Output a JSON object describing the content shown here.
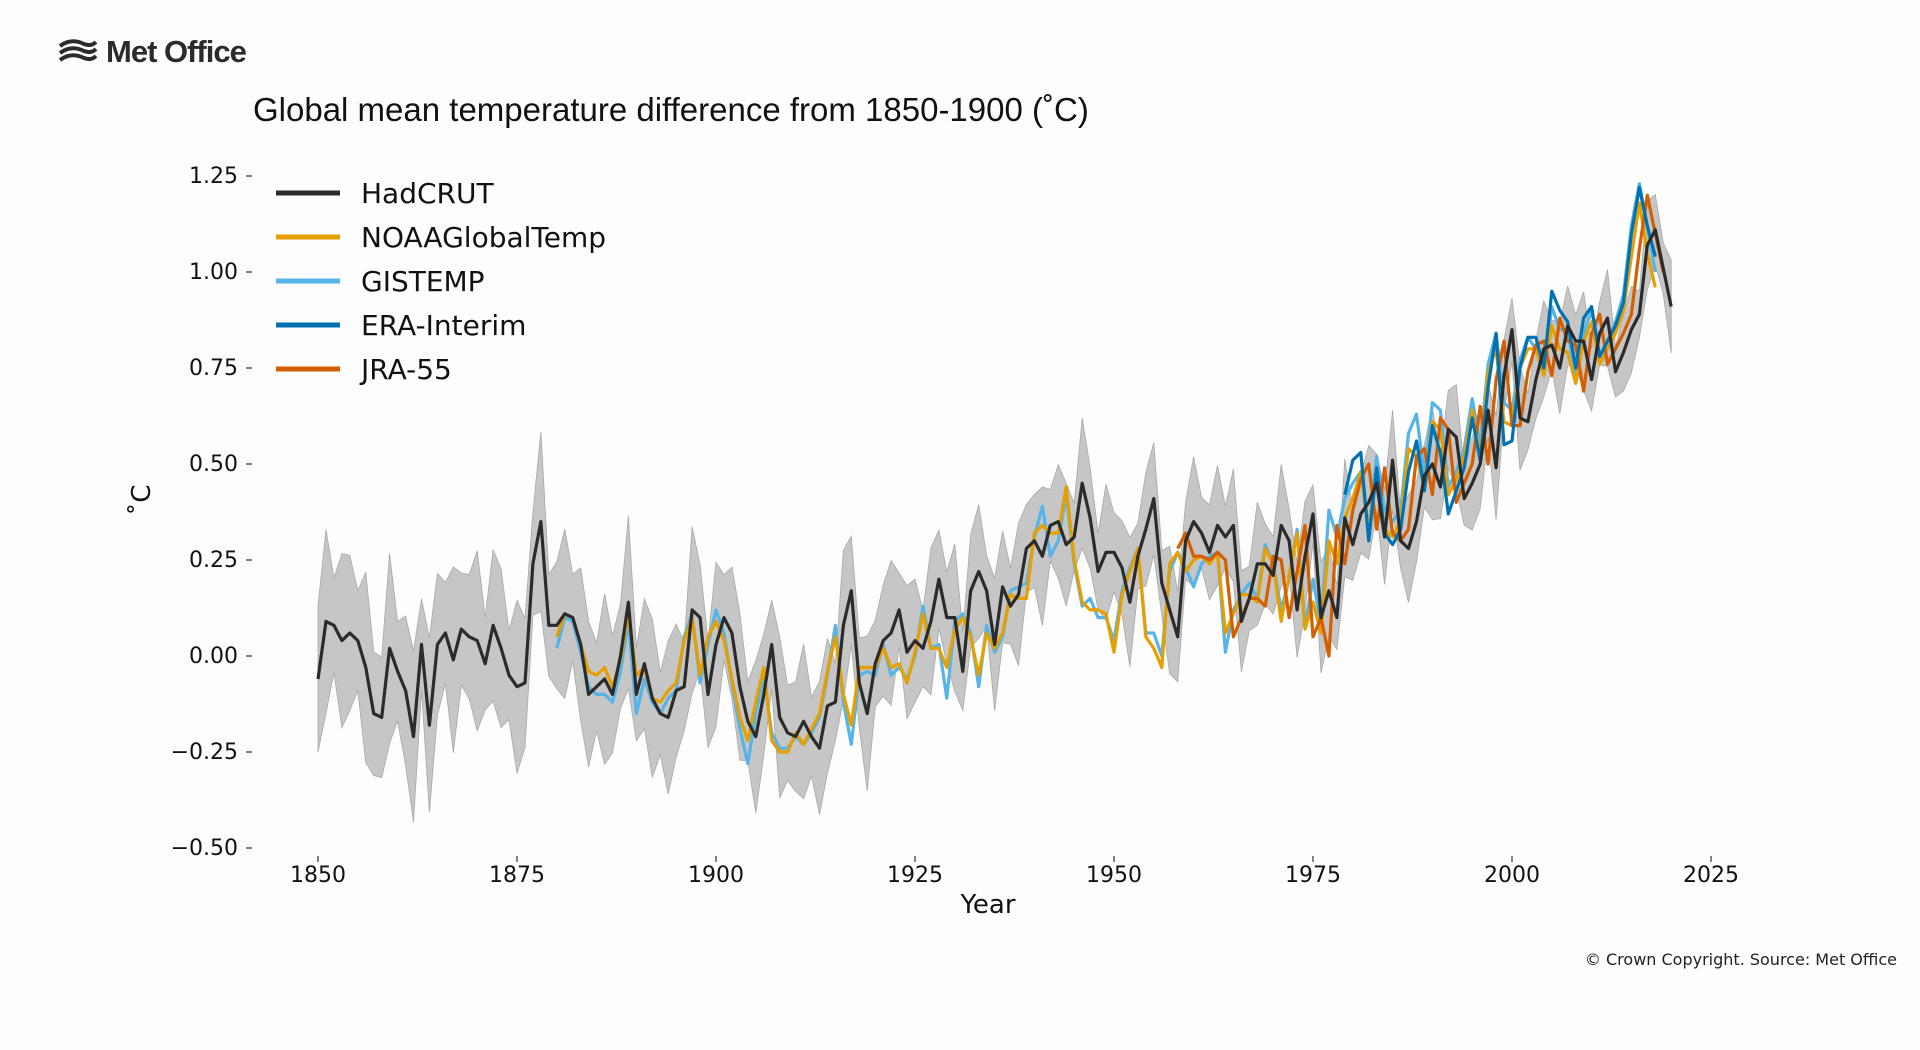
{
  "logo": {
    "text": "Met Office",
    "icon": "met-office-waves-icon"
  },
  "copyright": "© Crown Copyright. Source: Met Office",
  "chart_data": {
    "type": "line",
    "title": "Global mean temperature difference from 1850-1900 (˚C)",
    "xlabel": "Year",
    "ylabel": "˚C",
    "xlim": [
      1842,
      2030
    ],
    "ylim": [
      -0.5,
      1.3
    ],
    "xticks": [
      1850,
      1875,
      1900,
      1925,
      1950,
      1975,
      2000,
      2025
    ],
    "yticks": [
      -0.5,
      -0.25,
      0.0,
      0.25,
      0.5,
      0.75,
      1.0,
      1.25
    ],
    "ytick_labels": [
      "−0.50",
      "−0.25",
      "0.00",
      "0.25",
      "0.50",
      "0.75",
      "1.00",
      "1.25"
    ],
    "grid": false,
    "legend_position": "top-left",
    "uncertainty_band": {
      "name": "HadCRUT uncertainty",
      "color": "#bdbdbd",
      "halfwidth_early": 0.19,
      "halfwidth_late": 0.09
    },
    "series": [
      {
        "name": "HadCRUT",
        "color": "#2b2b2b",
        "start": 1850,
        "values": [
          -0.06,
          0.09,
          0.08,
          0.04,
          0.06,
          0.04,
          -0.03,
          -0.15,
          -0.16,
          0.02,
          -0.04,
          -0.09,
          -0.21,
          0.03,
          -0.18,
          0.03,
          0.06,
          -0.01,
          0.07,
          0.05,
          0.04,
          -0.02,
          0.08,
          0.02,
          -0.05,
          -0.08,
          -0.07,
          0.24,
          0.35,
          0.08,
          0.08,
          0.11,
          0.1,
          0.03,
          -0.1,
          -0.08,
          -0.06,
          -0.1,
          0.0,
          0.14,
          -0.1,
          -0.02,
          -0.11,
          -0.15,
          -0.16,
          -0.09,
          -0.08,
          0.12,
          0.1,
          -0.1,
          0.03,
          0.1,
          0.06,
          -0.08,
          -0.17,
          -0.21,
          -0.1,
          0.03,
          -0.16,
          -0.2,
          -0.21,
          -0.17,
          -0.21,
          -0.24,
          -0.13,
          -0.12,
          0.08,
          0.17,
          -0.07,
          -0.15,
          -0.02,
          0.04,
          0.06,
          0.12,
          0.01,
          0.04,
          0.02,
          0.09,
          0.2,
          0.1,
          0.1,
          -0.04,
          0.17,
          0.22,
          0.17,
          0.03,
          0.18,
          0.13,
          0.16,
          0.28,
          0.3,
          0.26,
          0.34,
          0.35,
          0.29,
          0.31,
          0.45,
          0.36,
          0.22,
          0.27,
          0.27,
          0.23,
          0.14,
          0.26,
          0.33,
          0.41,
          0.19,
          0.12,
          0.05,
          0.3,
          0.35,
          0.32,
          0.27,
          0.34,
          0.31,
          0.34,
          0.09,
          0.15,
          0.24,
          0.24,
          0.21,
          0.34,
          0.3,
          0.12,
          0.26,
          0.37,
          0.1,
          0.17,
          0.1,
          0.36,
          0.29,
          0.37,
          0.4,
          0.45,
          0.31,
          0.51,
          0.3,
          0.28,
          0.35,
          0.47,
          0.5,
          0.44,
          0.59,
          0.57,
          0.41,
          0.45,
          0.5,
          0.64,
          0.49,
          0.73,
          0.85,
          0.62,
          0.61,
          0.72,
          0.8,
          0.81,
          0.75,
          0.86,
          0.82,
          0.82,
          0.72,
          0.84,
          0.88,
          0.74,
          0.79,
          0.85,
          0.89,
          1.07,
          1.11,
          1.01,
          0.91
        ]
      },
      {
        "name": "NOAAGlobalTemp",
        "color": "#e69f00",
        "start": 1880,
        "values": [
          0.05,
          0.11,
          0.1,
          0.03,
          -0.04,
          -0.05,
          -0.03,
          -0.08,
          -0.01,
          0.11,
          -0.05,
          -0.03,
          -0.11,
          -0.12,
          -0.09,
          -0.07,
          0.04,
          0.1,
          -0.05,
          0.05,
          0.09,
          0.04,
          -0.06,
          -0.16,
          -0.22,
          -0.12,
          -0.03,
          -0.22,
          -0.25,
          -0.25,
          -0.2,
          -0.23,
          -0.19,
          -0.15,
          -0.04,
          0.05,
          -0.1,
          -0.18,
          -0.03,
          -0.03,
          -0.03,
          0.02,
          -0.03,
          -0.02,
          -0.07,
          0.01,
          0.11,
          0.02,
          0.02,
          -0.03,
          0.07,
          0.1,
          0.05,
          -0.05,
          0.06,
          0.02,
          0.06,
          0.16,
          0.15,
          0.15,
          0.32,
          0.34,
          0.32,
          0.32,
          0.44,
          0.25,
          0.14,
          0.12,
          0.12,
          0.11,
          0.01,
          0.16,
          0.22,
          0.28,
          0.05,
          0.02,
          -0.03,
          0.24,
          0.27,
          0.22,
          0.25,
          0.26,
          0.24,
          0.27,
          0.06,
          0.11,
          0.16,
          0.16,
          0.14,
          0.28,
          0.24,
          0.09,
          0.21,
          0.32,
          0.07,
          0.14,
          0.06,
          0.3,
          0.24,
          0.36,
          0.41,
          0.48,
          0.33,
          0.48,
          0.33,
          0.31,
          0.35,
          0.54,
          0.52,
          0.44,
          0.61,
          0.59,
          0.42,
          0.46,
          0.52,
          0.64,
          0.52,
          0.74,
          0.8,
          0.61,
          0.6,
          0.75,
          0.8,
          0.8,
          0.73,
          0.86,
          0.8,
          0.79,
          0.71,
          0.82,
          0.87,
          0.76,
          0.8,
          0.84,
          0.9,
          1.04,
          1.18,
          1.05,
          0.96
        ]
      },
      {
        "name": "GISTEMP",
        "color": "#56b4e9",
        "start": 1880,
        "values": [
          0.02,
          0.1,
          0.09,
          0.01,
          -0.08,
          -0.1,
          -0.1,
          -0.12,
          -0.04,
          0.09,
          -0.15,
          -0.06,
          -0.12,
          -0.15,
          -0.11,
          -0.09,
          0.05,
          0.11,
          -0.07,
          0.03,
          0.12,
          0.06,
          -0.07,
          -0.19,
          -0.28,
          -0.15,
          -0.05,
          -0.2,
          -0.24,
          -0.24,
          -0.21,
          -0.23,
          -0.2,
          -0.16,
          -0.05,
          0.08,
          -0.12,
          -0.23,
          -0.05,
          -0.04,
          -0.05,
          0.03,
          -0.05,
          -0.03,
          -0.06,
          0.0,
          0.13,
          0.02,
          0.03,
          -0.11,
          0.09,
          0.11,
          0.06,
          -0.08,
          0.08,
          0.01,
          0.05,
          0.17,
          0.18,
          0.19,
          0.31,
          0.39,
          0.26,
          0.3,
          0.42,
          0.24,
          0.13,
          0.15,
          0.1,
          0.1,
          0.04,
          0.17,
          0.23,
          0.28,
          0.06,
          0.06,
          0.0,
          0.22,
          0.27,
          0.23,
          0.18,
          0.24,
          0.26,
          0.27,
          0.01,
          0.12,
          0.16,
          0.19,
          0.15,
          0.29,
          0.24,
          0.12,
          0.2,
          0.33,
          0.08,
          0.2,
          0.08,
          0.38,
          0.31,
          0.41,
          0.45,
          0.48,
          0.33,
          0.52,
          0.38,
          0.35,
          0.38,
          0.58,
          0.63,
          0.47,
          0.66,
          0.64,
          0.44,
          0.48,
          0.54,
          0.67,
          0.55,
          0.76,
          0.84,
          0.66,
          0.64,
          0.77,
          0.83,
          0.8,
          0.75,
          0.91,
          0.85,
          0.85,
          0.72,
          0.84,
          0.9,
          0.78,
          0.82,
          0.87,
          0.94,
          1.12,
          1.23,
          1.12,
          1.0
        ]
      },
      {
        "name": "ERA-Interim",
        "color": "#0072b2",
        "start": 1979,
        "values": [
          0.42,
          0.51,
          0.53,
          0.3,
          0.49,
          0.32,
          0.29,
          0.33,
          0.48,
          0.56,
          0.43,
          0.6,
          0.53,
          0.37,
          0.43,
          0.49,
          0.62,
          0.51,
          0.7,
          0.84,
          0.55,
          0.56,
          0.75,
          0.83,
          0.83,
          0.75,
          0.95,
          0.9,
          0.87,
          0.75,
          0.88,
          0.91,
          0.78,
          0.82,
          0.86,
          0.92,
          1.1,
          1.22,
          1.12,
          1.04
        ]
      },
      {
        "name": "JRA-55",
        "color": "#d55e00",
        "start": 1958,
        "values": [
          0.28,
          0.32,
          0.26,
          0.26,
          0.25,
          0.27,
          0.25,
          0.05,
          0.1,
          0.15,
          0.15,
          0.13,
          0.26,
          0.25,
          0.1,
          0.22,
          0.34,
          0.05,
          0.1,
          0.0,
          0.34,
          0.24,
          0.38,
          0.46,
          0.5,
          0.33,
          0.49,
          0.32,
          0.3,
          0.33,
          0.52,
          0.54,
          0.42,
          0.62,
          0.59,
          0.4,
          0.45,
          0.5,
          0.65,
          0.5,
          0.72,
          0.82,
          0.6,
          0.6,
          0.74,
          0.81,
          0.82,
          0.73,
          0.88,
          0.82,
          0.81,
          0.69,
          0.84,
          0.89,
          0.76,
          0.8,
          0.84,
          0.89,
          1.06,
          1.2,
          1.1,
          1.0
        ]
      }
    ]
  }
}
